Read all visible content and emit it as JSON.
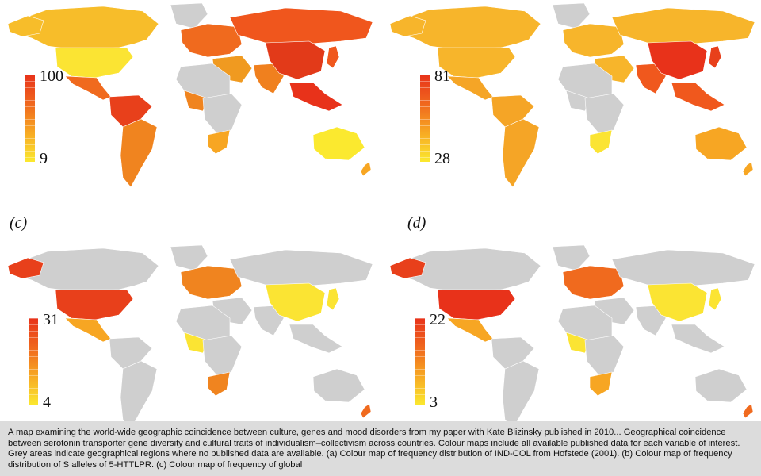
{
  "panels": [
    {
      "id": "a",
      "letter": "",
      "legend_max": "100",
      "legend_min": "9",
      "colors": {
        "na": "#f7bd2a",
        "us": "#fbe433",
        "alaska": "#f7bd2a",
        "mexico": "#f06a1e",
        "sa": "#f0841f",
        "sa_north": "#e8401b",
        "europe": "#f06a1e",
        "russia": "#f0561d",
        "china": "#e23a19",
        "india": "#f0801e",
        "seasia": "#e8321a",
        "africa_south": "#f7a623",
        "africa_west": "#f0841f",
        "middle_east": "#f09a20",
        "australia": "#fbe92f",
        "japan": "#f0581d",
        "nz": "#f7a623"
      }
    },
    {
      "id": "b",
      "letter": "",
      "legend_max": "81",
      "legend_min": "28",
      "colors": {
        "na": "#f7b52b",
        "us": "#f7b52b",
        "alaska": "#f7b52b",
        "mexico": "#f5a526",
        "sa": "#f5a526",
        "sa_north": "#f5a526",
        "europe": "#f7b52b",
        "russia": "#f7b52b",
        "china": "#e8321a",
        "india": "#f0581d",
        "seasia": "#f0581d",
        "africa_south": "#fbe433",
        "africa_west": "",
        "middle_east": "#f7b52b",
        "australia": "#f7a623",
        "japan": "#e8401b",
        "nz": "#f7a623"
      }
    },
    {
      "id": "c",
      "letter": "(c)",
      "legend_max": "31",
      "legend_min": "4",
      "colors": {
        "na": "",
        "us": "#e8401b",
        "alaska": "#e8401b",
        "mexico": "#f7a623",
        "sa": "",
        "sa_north": "",
        "europe": "#f0841f",
        "russia": "",
        "china": "#fbe433",
        "india": "",
        "seasia": "",
        "africa_south": "#f0841f",
        "africa_west": "#fbe433",
        "middle_east": "",
        "australia": "",
        "japan": "#fbe433",
        "nz": "#f06a1e"
      }
    },
    {
      "id": "d",
      "letter": "(d)",
      "legend_max": "22",
      "legend_min": "3",
      "colors": {
        "na": "",
        "us": "#e8321a",
        "alaska": "#e8401b",
        "mexico": "#f7a623",
        "sa": "",
        "sa_north": "",
        "europe": "#f06a1e",
        "russia": "",
        "china": "#fbe433",
        "india": "",
        "seasia": "",
        "africa_south": "#f7a623",
        "africa_west": "#fbe433",
        "middle_east": "",
        "australia": "",
        "japan": "#fbe433",
        "nz": "#f06a1e"
      }
    }
  ],
  "caption": "A map examining the world-wide geographic coincidence between culture, genes and mood disorders from my paper with Kate Blizinsky published in 2010... Geographical coincidence between serotonin transporter gene diversity and cultural traits of individualism–collectivism across countries. Colour maps include all available published data for each variable of interest. Grey areas indicate geographical regions where no published data are available. (a) Colour map of frequency distribution of IND-COL from Hofstede (2001). (b) Colour map of frequency distribution of S alleles of 5-HTTLPR. (c) Colour map of frequency of global"
}
